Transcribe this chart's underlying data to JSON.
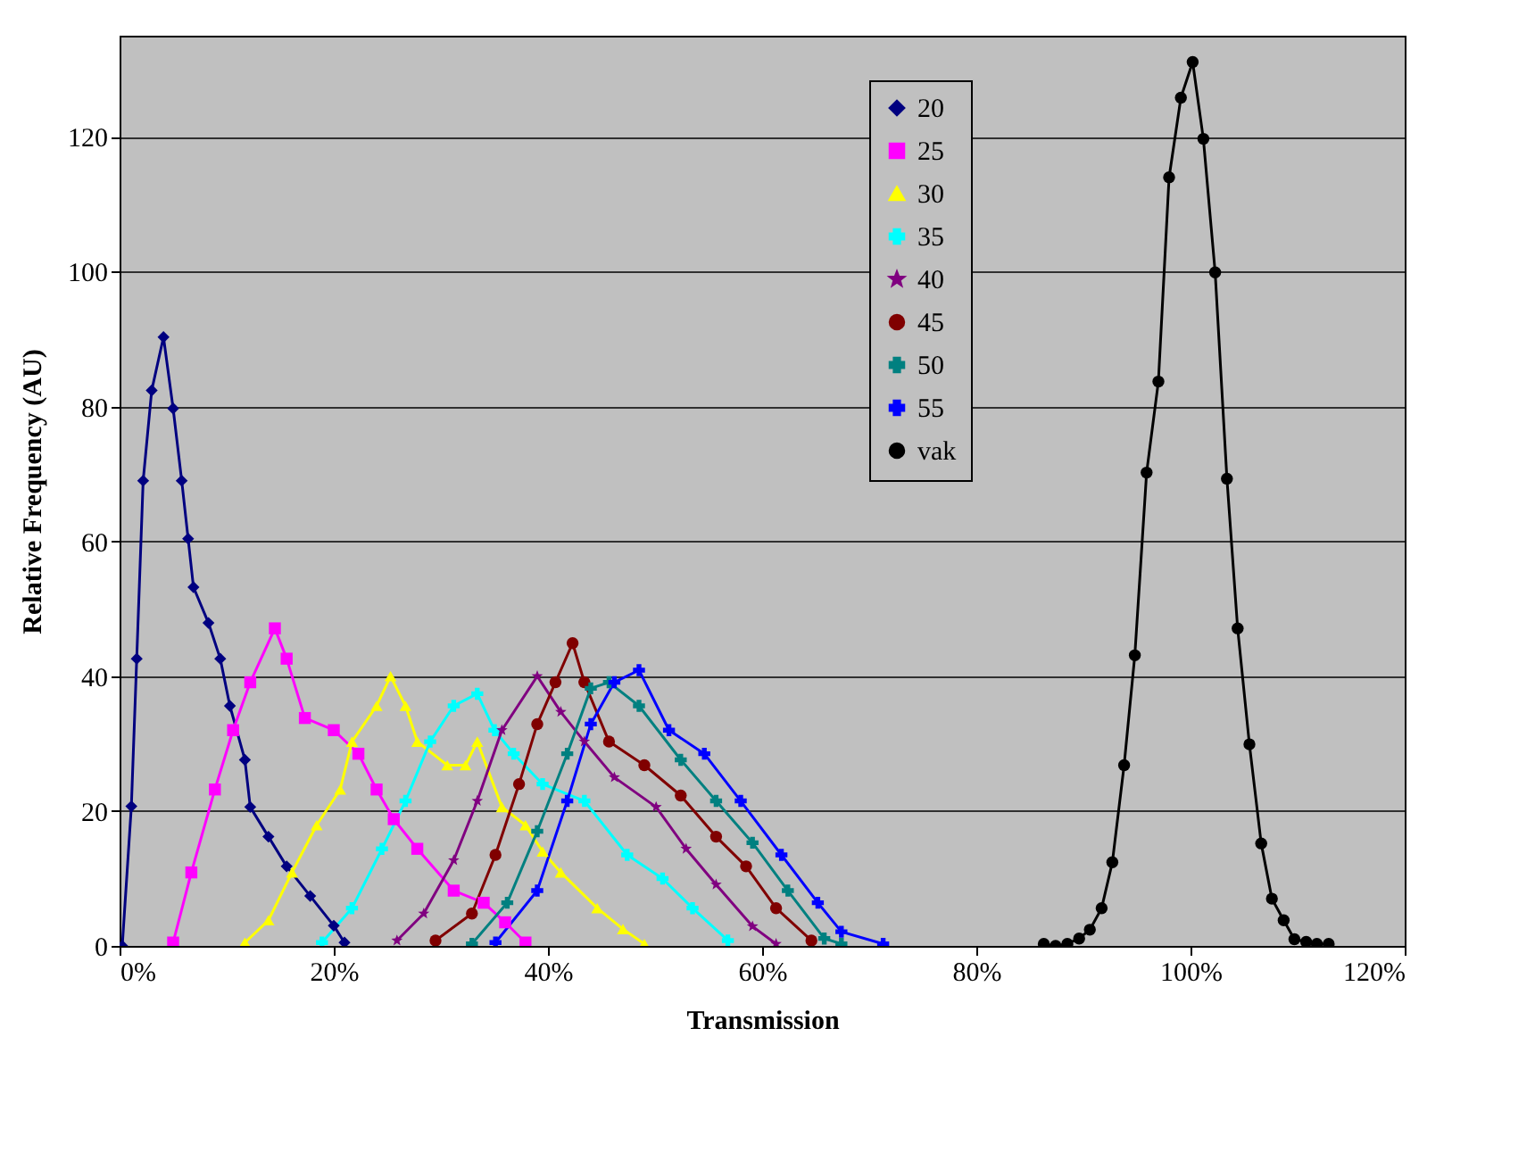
{
  "chart_data": {
    "type": "line",
    "xlabel": "Transmission",
    "ylabel": "Relative Frequency (AU)",
    "xlim": [
      0,
      120
    ],
    "ylim": [
      0,
      135
    ],
    "xticks": [
      {
        "value": 0,
        "label": "0%"
      },
      {
        "value": 20,
        "label": "20%"
      },
      {
        "value": 40,
        "label": "40%"
      },
      {
        "value": 60,
        "label": "60%"
      },
      {
        "value": 80,
        "label": "80%"
      },
      {
        "value": 100,
        "label": "100%"
      },
      {
        "value": 120,
        "label": "120%"
      }
    ],
    "yticks": [
      0,
      20,
      40,
      60,
      80,
      100,
      120
    ],
    "grid": "y",
    "legend": "top",
    "series": [
      {
        "name": "20",
        "color": "#000080",
        "marker": "diamond",
        "x": [
          0.25,
          1.1,
          1.6,
          2.2,
          3.0,
          4.1,
          5.0,
          5.8,
          6.4,
          6.9,
          8.3,
          9.4,
          10.3,
          11.7,
          12.2,
          13.9,
          15.6,
          17.8,
          20.0,
          21.0
        ],
        "values": [
          0,
          20.7,
          42.6,
          69,
          82.4,
          90.3,
          79.7,
          69,
          60.4,
          53.2,
          47.9,
          42.6,
          35.6,
          27.6,
          20.6,
          16.2,
          11.8,
          7.4,
          3,
          0.5
        ]
      },
      {
        "name": "25",
        "color": "#ff00ff",
        "marker": "square",
        "x": [
          5.0,
          6.7,
          8.9,
          10.6,
          12.2,
          14.5,
          15.6,
          17.3,
          20.0,
          22.3,
          24.0,
          25.6,
          27.8,
          31.2,
          34.0,
          36.0,
          37.9
        ],
        "values": [
          0.5,
          10.9,
          23.2,
          32,
          39.1,
          47.1,
          42.6,
          33.8,
          32,
          28.5,
          23.2,
          18.8,
          14.4,
          8.2,
          6.4,
          3.5,
          0.5
        ]
      },
      {
        "name": "30",
        "color": "#ffff00",
        "marker": "triangle",
        "x": [
          11.7,
          13.9,
          16.1,
          18.4,
          20.6,
          21.7,
          24.0,
          25.3,
          26.7,
          27.8,
          30.6,
          32.3,
          33.4,
          35.7,
          37.9,
          39.5,
          41.2,
          44.6,
          47.0,
          49.0
        ],
        "values": [
          0.5,
          3.8,
          10.9,
          17.9,
          23.2,
          30.3,
          35.6,
          40,
          35.6,
          30.3,
          26.8,
          26.8,
          30.3,
          20.6,
          17.9,
          14,
          10.9,
          5.6,
          2.5,
          0.3
        ]
      },
      {
        "name": "35",
        "color": "#00ffff",
        "marker": "cross",
        "x": [
          18.9,
          21.7,
          24.5,
          26.7,
          29.0,
          31.2,
          33.4,
          35.0,
          36.8,
          39.5,
          43.4,
          47.4,
          50.7,
          53.5,
          56.8
        ],
        "values": [
          0.5,
          5.6,
          14.4,
          21.5,
          30.3,
          35.6,
          37.4,
          32,
          28.5,
          24,
          21.5,
          13.5,
          10,
          5.6,
          0.8
        ]
      },
      {
        "name": "40",
        "color": "#800080",
        "marker": "star",
        "x": [
          25.9,
          28.4,
          31.2,
          33.4,
          35.7,
          39.0,
          41.2,
          43.4,
          46.2,
          50.1,
          52.9,
          55.7,
          59.1,
          61.3
        ],
        "values": [
          0.8,
          4.8,
          12.7,
          21.5,
          32,
          40,
          34.7,
          30.3,
          25,
          20.6,
          14.4,
          9.1,
          2.9,
          0.3
        ]
      },
      {
        "name": "45",
        "color": "#800000",
        "marker": "circle",
        "x": [
          29.5,
          32.9,
          35.1,
          37.3,
          39.0,
          40.7,
          42.3,
          43.4,
          45.7,
          49.0,
          52.4,
          55.7,
          58.5,
          61.3,
          64.6
        ],
        "values": [
          0.8,
          4.8,
          13.5,
          24,
          32.9,
          39.1,
          44.9,
          39.1,
          30.3,
          26.8,
          22.3,
          16.2,
          11.8,
          5.6,
          0.8
        ]
      },
      {
        "name": "50",
        "color": "#008080",
        "marker": "cross",
        "x": [
          32.9,
          36.2,
          39.0,
          41.8,
          44.0,
          45.7,
          48.5,
          52.4,
          55.7,
          59.1,
          62.4,
          65.8,
          67.4
        ],
        "values": [
          0.3,
          6.4,
          17,
          28.5,
          38.2,
          39.1,
          35.6,
          27.6,
          21.5,
          15.3,
          8.2,
          1.1,
          0.3
        ]
      },
      {
        "name": "55",
        "color": "#0000ff",
        "marker": "cross",
        "x": [
          35.1,
          39.0,
          41.8,
          44.0,
          46.2,
          48.5,
          51.3,
          54.6,
          58.0,
          61.8,
          65.2,
          67.4,
          71.3
        ],
        "values": [
          0.5,
          8.2,
          21.5,
          32.9,
          39.1,
          40.9,
          32,
          28.5,
          21.5,
          13.5,
          6.4,
          2.1,
          0.3
        ]
      },
      {
        "name": "vak",
        "color": "#000000",
        "marker": "circle",
        "x": [
          86.3,
          87.4,
          88.5,
          89.6,
          90.6,
          91.7,
          92.7,
          93.8,
          94.8,
          95.9,
          97.0,
          98.0,
          99.1,
          100.2,
          101.2,
          102.3,
          103.4,
          104.4,
          105.5,
          106.6,
          107.6,
          108.7,
          109.7,
          110.8,
          111.8,
          112.9
        ],
        "values": [
          0.3,
          0,
          0.3,
          1.1,
          2.4,
          5.6,
          12.4,
          26.8,
          43.1,
          70.2,
          83.7,
          114,
          125.8,
          131.1,
          119.7,
          99.9,
          69.3,
          47.1,
          29.9,
          15.2,
          7,
          3.8,
          1,
          0.6,
          0.3,
          0.3
        ]
      }
    ]
  }
}
